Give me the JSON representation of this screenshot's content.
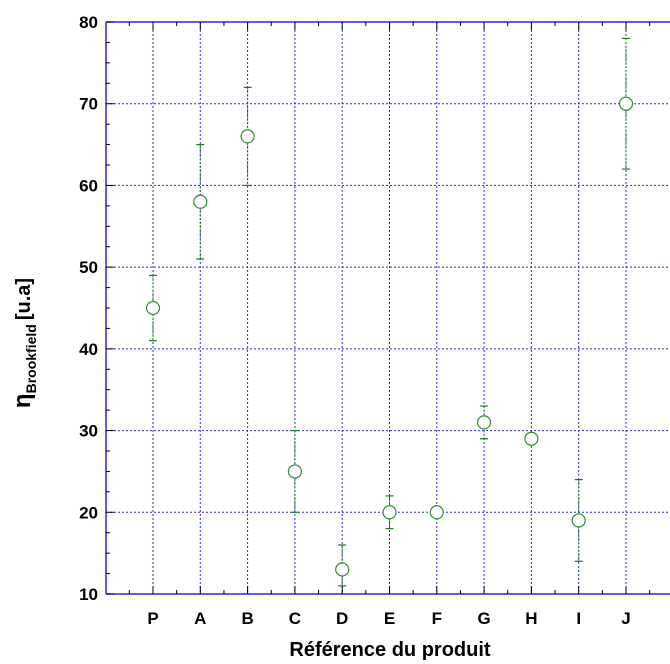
{
  "chart_data": {
    "type": "scatter",
    "title": "",
    "xlabel": "Référence du produit",
    "ylabel": {
      "main": "η",
      "subscript": "Brookfield",
      "unit": "[u.a]"
    },
    "categories": [
      "P",
      "A",
      "B",
      "C",
      "D",
      "E",
      "F",
      "G",
      "H",
      "I",
      "J"
    ],
    "values": [
      45,
      58,
      66,
      25,
      13,
      20,
      20,
      31,
      29,
      19,
      70
    ],
    "error_low": [
      41,
      51,
      60,
      20,
      11,
      18,
      null,
      29,
      null,
      14,
      62
    ],
    "error_high": [
      49,
      65,
      72,
      30,
      16,
      22,
      null,
      33,
      null,
      24,
      78
    ],
    "ylim": [
      10,
      80
    ],
    "yticks": [
      10,
      20,
      30,
      40,
      50,
      60,
      70,
      80
    ],
    "grid": true,
    "colors": {
      "marker": "#2e8b2e",
      "errorbar": "#1a7a1a",
      "grid": "#2a2ad6",
      "axis": "#2a2ad6"
    }
  }
}
